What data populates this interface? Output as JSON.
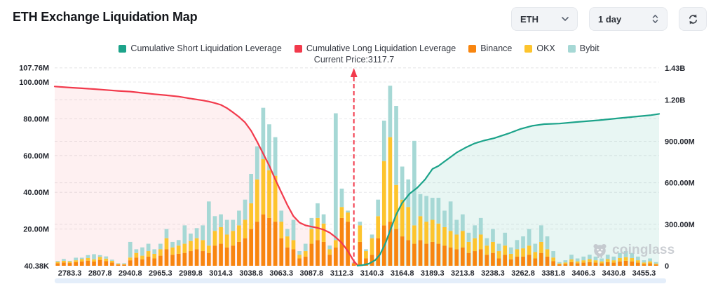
{
  "header": {
    "title": "ETH Exchange Liquidation Map"
  },
  "controls": {
    "symbol": "ETH",
    "timeframe": "1 day"
  },
  "colors": {
    "long": "#f23a4c",
    "long_fill": "rgba(242,58,76,0.08)",
    "short": "#1ca38a",
    "short_fill": "rgba(28,163,138,0.10)",
    "binance": "#f8850f",
    "okx": "#fdc42d",
    "bybit": "#a6d8d5",
    "grid": "#e9e9eb",
    "axis_text": "#23262e",
    "price_line": "#f23a4c"
  },
  "legend": {
    "items": [
      {
        "label": "Cumulative Short Liquidation Leverage",
        "color": "#1ca38a"
      },
      {
        "label": "Cumulative Long Liquidation Leverage",
        "color": "#f23a4c"
      },
      {
        "label": "Binance",
        "color": "#f8850f"
      },
      {
        "label": "OKX",
        "color": "#fdc42d"
      },
      {
        "label": "Bybit",
        "color": "#a6d8d5"
      }
    ]
  },
  "watermark": {
    "text": "coinglass"
  },
  "chart_data": {
    "type": "bar",
    "title": "ETH Exchange Liquidation Map",
    "current_price": 3117.7,
    "current_price_label": "Current Price:3117.7",
    "current_price_bin": 49.0,
    "x_tick_labels": [
      "2783.3",
      "2807.8",
      "2940.8",
      "2965.3",
      "2989.8",
      "3014.3",
      "3038.8",
      "3063.3",
      "3087.8",
      "3112.3",
      "3140.3",
      "3164.8",
      "3189.3",
      "3213.8",
      "3238.3",
      "3262.8",
      "3381.8",
      "3406.3",
      "3430.8",
      "3455.3"
    ],
    "left_axis": {
      "title": "Liquidation volume (per price bin)",
      "ticks": [
        {
          "label": "107.76M",
          "value": 107.76
        },
        {
          "label": "100.00M",
          "value": 100
        },
        {
          "label": "80.00M",
          "value": 80
        },
        {
          "label": "60.00M",
          "value": 60
        },
        {
          "label": "40.00M",
          "value": 40
        },
        {
          "label": "20.00M",
          "value": 20
        },
        {
          "label": "40.38K",
          "value": 0.04
        }
      ],
      "max_m": 107.76
    },
    "right_axis": {
      "title": "Cumulative liquidation leverage",
      "ticks": [
        {
          "label": "1.43B",
          "value": 1430
        },
        {
          "label": "1.20B",
          "value": 1200
        },
        {
          "label": "900.00M",
          "value": 900
        },
        {
          "label": "600.00M",
          "value": 600
        },
        {
          "label": "300.00M",
          "value": 300
        },
        {
          "label": "0",
          "value": 0
        }
      ],
      "max_m": 1430
    },
    "bar_series": {
      "names": [
        "Binance",
        "OKX",
        "Bybit"
      ],
      "units": "millions USD",
      "bins": [
        [
          1.4,
          0.7,
          0.5
        ],
        [
          1.8,
          0.9,
          1.0
        ],
        [
          1.5,
          0.8,
          0.4
        ],
        [
          2.0,
          1.0,
          1.4
        ],
        [
          2.4,
          1.2,
          0.8
        ],
        [
          2.8,
          1.4,
          1.6
        ],
        [
          2.3,
          1.2,
          2.8
        ],
        [
          3.2,
          1.6,
          1.0
        ],
        [
          2.6,
          1.3,
          1.2
        ],
        [
          1.8,
          0.9,
          0.6
        ],
        [
          0.7,
          0.4,
          0.3
        ],
        [
          0.6,
          0.3,
          0.5
        ],
        [
          3.0,
          1.5,
          8.5
        ],
        [
          4.5,
          2.5,
          2.0
        ],
        [
          3.5,
          2.0,
          4.5
        ],
        [
          5.0,
          3.0,
          4.0
        ],
        [
          4.0,
          2.5,
          2.5
        ],
        [
          5.5,
          3.5,
          3.0
        ],
        [
          9.0,
          6.0,
          5.0
        ],
        [
          6.0,
          4.0,
          3.0
        ],
        [
          6.5,
          4.5,
          3.0
        ],
        [
          7.0,
          5.0,
          10.0
        ],
        [
          8.0,
          5.5,
          4.0
        ],
        [
          9.0,
          6.0,
          5.5
        ],
        [
          8.0,
          6.0,
          8.0
        ],
        [
          7.0,
          4.0,
          24.0
        ],
        [
          11.0,
          8.0,
          8.0
        ],
        [
          12.0,
          9.0,
          7.0
        ],
        [
          10.0,
          7.0,
          8.0
        ],
        [
          11.0,
          8.0,
          6.0
        ],
        [
          13.0,
          9.0,
          8.0
        ],
        [
          15.0,
          10.0,
          11.0
        ],
        [
          20.0,
          14.0,
          16.0
        ],
        [
          24.0,
          23.0,
          18.0
        ],
        [
          28.0,
          30.0,
          28.0
        ],
        [
          26.0,
          26.0,
          25.0
        ],
        [
          24.0,
          25.0,
          21.0
        ],
        [
          15.0,
          9.0,
          6.0
        ],
        [
          10.0,
          6.0,
          4.0
        ],
        [
          9.0,
          5.0,
          11.0
        ],
        [
          4.0,
          2.0,
          2.0
        ],
        [
          5.0,
          3.0,
          4.0
        ],
        [
          12.0,
          8.0,
          6.0
        ],
        [
          14.0,
          12.0,
          8.0
        ],
        [
          13.0,
          10.0,
          5.0
        ],
        [
          6.0,
          3.0,
          2.0
        ],
        [
          10.0,
          4.0,
          69.0
        ],
        [
          26.0,
          6.0,
          10.0
        ],
        [
          24.0,
          5.0,
          1.0
        ],
        [
          1.0,
          0.5,
          0.3
        ],
        [
          13.0,
          9.0,
          2.0
        ],
        [
          4.0,
          4.0,
          1.0
        ],
        [
          6.0,
          9.0,
          2.0
        ],
        [
          15.0,
          12.0,
          9.0
        ],
        [
          22.0,
          35.0,
          22.0
        ],
        [
          24.0,
          46.0,
          28.0
        ],
        [
          20.0,
          24.0,
          43.0
        ],
        [
          16.0,
          20.0,
          18.0
        ],
        [
          14.0,
          18.0,
          15.0
        ],
        [
          12.0,
          10.0,
          46.0
        ],
        [
          14.0,
          13.0,
          12.0
        ],
        [
          12.0,
          12.0,
          14.0
        ],
        [
          13.0,
          12.0,
          12.0
        ],
        [
          12.0,
          11.0,
          14.0
        ],
        [
          11.0,
          10.0,
          9.0
        ],
        [
          10.0,
          9.0,
          16.0
        ],
        [
          9.0,
          8.0,
          8.0
        ],
        [
          10.0,
          9.0,
          9.0
        ],
        [
          7.0,
          6.0,
          5.0
        ],
        [
          8.0,
          7.0,
          7.0
        ],
        [
          9.0,
          8.0,
          9.0
        ],
        [
          6.0,
          5.0,
          4.0
        ],
        [
          7.0,
          6.0,
          7.0
        ],
        [
          4.0,
          4.0,
          4.0
        ],
        [
          6.0,
          5.0,
          7.0
        ],
        [
          3.5,
          3.0,
          3.5
        ],
        [
          5.0,
          4.0,
          5.0
        ],
        [
          5.0,
          4.5,
          6.5
        ],
        [
          6.0,
          5.0,
          9.0
        ],
        [
          4.0,
          3.5,
          4.5
        ],
        [
          7.0,
          6.0,
          9.0
        ],
        [
          5.0,
          4.0,
          7.0
        ],
        [
          2.5,
          2.0,
          3.5
        ],
        [
          0.8,
          0.5,
          0.7
        ],
        [
          1.0,
          0.8,
          1.2
        ],
        [
          2.0,
          1.5,
          2.5
        ],
        [
          1.4,
          1.0,
          1.6
        ],
        [
          1.7,
          1.3,
          2.0
        ],
        [
          2.0,
          1.6,
          2.4
        ],
        [
          1.7,
          1.3,
          2.0
        ],
        [
          1.4,
          1.0,
          1.6
        ],
        [
          2.0,
          1.6,
          2.4
        ],
        [
          1.7,
          1.3,
          2.0
        ],
        [
          2.4,
          1.8,
          2.8
        ],
        [
          2.7,
          2.0,
          3.3
        ],
        [
          2.4,
          1.8,
          2.8
        ],
        [
          1.7,
          1.3,
          2.0
        ],
        [
          1.0,
          0.8,
          1.2
        ],
        [
          1.4,
          1.0,
          1.6
        ],
        [
          0.7,
          0.5,
          0.8
        ]
      ]
    },
    "long_line": {
      "name": "Cumulative Long Liquidation Leverage",
      "axis": "left",
      "units": "millions USD",
      "points": [
        [
          -0.5,
          97.6
        ],
        [
          2,
          97.0
        ],
        [
          4,
          96.6
        ],
        [
          6,
          96.2
        ],
        [
          8,
          95.7
        ],
        [
          10,
          95.2
        ],
        [
          12,
          94.8
        ],
        [
          14,
          94.1
        ],
        [
          16,
          93.4
        ],
        [
          18,
          92.8
        ],
        [
          20,
          92.1
        ],
        [
          22,
          91.0
        ],
        [
          24,
          90.0
        ],
        [
          25,
          89.4
        ],
        [
          26,
          88.6
        ],
        [
          27,
          87.6
        ],
        [
          28,
          85.8
        ],
        [
          29,
          83.5
        ],
        [
          30,
          81.0
        ],
        [
          31,
          78.0
        ],
        [
          32,
          73.5
        ],
        [
          33,
          67.5
        ],
        [
          34,
          61.0
        ],
        [
          35,
          54.5
        ],
        [
          36,
          47.0
        ],
        [
          37,
          40.0
        ],
        [
          38,
          33.0
        ],
        [
          39,
          27.0
        ],
        [
          40,
          23.5
        ],
        [
          41,
          22.0
        ],
        [
          42,
          21.3
        ],
        [
          43,
          20.6
        ],
        [
          44,
          19.6
        ],
        [
          45,
          18.0
        ],
        [
          46,
          15.5
        ],
        [
          47,
          12.5
        ],
        [
          48,
          8.0
        ],
        [
          49,
          2.5
        ],
        [
          49.6,
          0.3
        ]
      ]
    },
    "short_line": {
      "name": "Cumulative Short Liquidation Leverage",
      "axis": "right",
      "units": "millions USD",
      "points": [
        [
          49.6,
          1
        ],
        [
          50.5,
          5
        ],
        [
          51.5,
          15
        ],
        [
          52.5,
          40
        ],
        [
          53.3,
          80
        ],
        [
          54.2,
          160
        ],
        [
          55,
          255
        ],
        [
          56,
          370
        ],
        [
          57,
          455
        ],
        [
          58.2,
          520
        ],
        [
          59.5,
          565
        ],
        [
          60.8,
          625
        ],
        [
          62,
          700
        ],
        [
          63,
          722
        ],
        [
          64.5,
          770
        ],
        [
          66,
          818
        ],
        [
          67.5,
          855
        ],
        [
          69,
          885
        ],
        [
          70.5,
          905
        ],
        [
          72.2,
          922
        ],
        [
          74.5,
          955
        ],
        [
          76.5,
          988
        ],
        [
          78.5,
          1012
        ],
        [
          80.5,
          1024
        ],
        [
          83,
          1028
        ],
        [
          86,
          1040
        ],
        [
          89.5,
          1052
        ],
        [
          92.5,
          1065
        ],
        [
          95.5,
          1078
        ],
        [
          98,
          1088
        ],
        [
          100.4,
          1098
        ]
      ]
    }
  }
}
